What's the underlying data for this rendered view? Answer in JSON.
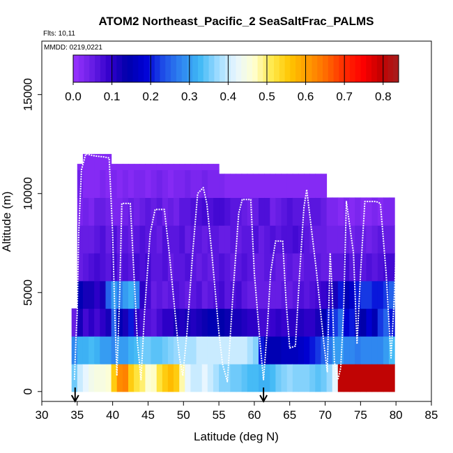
{
  "chart_data": {
    "type": "heatmap",
    "title": "ATOM2 Northeast_Pacific_2 SeaSaltFrac_PALMS",
    "subtitle_flights": "Flts: 10,11",
    "subtitle_dates": "MMDD: 0219,0221",
    "xlabel": "Latitude (deg N)",
    "ylabel": "Altitude (m)",
    "xlim": [
      30,
      85
    ],
    "ylim": [
      0,
      15000
    ],
    "x_ticks": [
      "30",
      "35",
      "40",
      "45",
      "50",
      "55",
      "60",
      "65",
      "70",
      "75",
      "80",
      "85"
    ],
    "y_ticks": [
      "0",
      "5000",
      "10000",
      "15000"
    ],
    "colorbar": {
      "range": [
        0,
        0.84
      ],
      "ticks": [
        "0.0",
        "0.1",
        "0.2",
        "0.3",
        "0.4",
        "0.5",
        "0.6",
        "0.7",
        "0.8"
      ],
      "colors": [
        "#9933ff",
        "#6a1fe6",
        "#3300cc",
        "#0000aa",
        "#0000d6",
        "#1f4fe8",
        "#2f87f0",
        "#3fb8f5",
        "#9fdcff",
        "#e8f6ff",
        "#ffffd0",
        "#ffe94a",
        "#ffc400",
        "#ff9a00",
        "#ff6a00",
        "#ff2a00",
        "#ff0000",
        "#c40000",
        "#a61f1f"
      ]
    },
    "arrows_latitude": [
      34.7,
      61.3
    ],
    "bin_width_deg": 0.8,
    "bin_height_m": 1400,
    "columns": [
      {
        "lat": 34.6,
        "top": 4000,
        "values": [
          0.35,
          0.28,
          0.05,
          0.05
        ]
      },
      {
        "lat": 35.4,
        "top": 11500,
        "values": [
          0.4,
          0.32,
          0.12,
          0.15,
          0.05,
          0.05,
          0.03,
          0.04,
          0.02
        ]
      },
      {
        "lat": 36.2,
        "top": 12000,
        "values": [
          0.42,
          0.32,
          0.08,
          0.12,
          0.06,
          0.05,
          0.04,
          0.02,
          0.02
        ]
      },
      {
        "lat": 37.0,
        "top": 12000,
        "values": [
          0.44,
          0.33,
          0.1,
          0.12,
          0.07,
          0.05,
          0.03,
          0.02,
          0.02
        ]
      },
      {
        "lat": 37.8,
        "top": 12000,
        "values": [
          0.45,
          0.32,
          0.08,
          0.1,
          0.08,
          0.06,
          0.05,
          0.02,
          0.02
        ]
      },
      {
        "lat": 38.6,
        "top": 12000,
        "values": [
          0.45,
          0.3,
          0.1,
          0.12,
          0.07,
          0.07,
          0.05,
          0.03,
          0.02
        ]
      },
      {
        "lat": 39.4,
        "top": 12000,
        "values": [
          0.46,
          0.3,
          0.12,
          0.25,
          0.06,
          0.05,
          0.04,
          0.02,
          0.02
        ]
      },
      {
        "lat": 40.2,
        "top": 11500,
        "values": [
          0.55,
          0.28,
          0.25,
          0.3,
          0.08,
          0.07,
          0.03,
          0.03,
          0.02
        ]
      },
      {
        "lat": 41.0,
        "top": 11500,
        "values": [
          0.62,
          0.3,
          0.15,
          0.27,
          0.06,
          0.05,
          0.03,
          0.02,
          0.02
        ]
      },
      {
        "lat": 41.8,
        "top": 11500,
        "values": [
          0.63,
          0.3,
          0.12,
          0.3,
          0.07,
          0.06,
          0.04,
          0.03,
          0.02
        ]
      },
      {
        "lat": 42.6,
        "top": 11500,
        "values": [
          0.55,
          0.32,
          0.2,
          0.32,
          0.06,
          0.05,
          0.05,
          0.02,
          0.02
        ]
      },
      {
        "lat": 43.4,
        "top": 11500,
        "values": [
          0.52,
          0.33,
          0.1,
          0.28,
          0.08,
          0.06,
          0.04,
          0.03,
          0.02
        ]
      },
      {
        "lat": 44.2,
        "top": 11500,
        "values": [
          0.5,
          0.35,
          0.08,
          0.1,
          0.07,
          0.07,
          0.05,
          0.03,
          0.02
        ]
      },
      {
        "lat": 45.0,
        "top": 11500,
        "values": [
          0.46,
          0.35,
          0.07,
          0.08,
          0.08,
          0.06,
          0.06,
          0.02,
          0.02
        ]
      },
      {
        "lat": 45.8,
        "top": 11500,
        "values": [
          0.47,
          0.34,
          0.06,
          0.05,
          0.06,
          0.06,
          0.05,
          0.03,
          0.02
        ]
      },
      {
        "lat": 46.6,
        "top": 11500,
        "values": [
          0.52,
          0.34,
          0.08,
          0.06,
          0.06,
          0.05,
          0.06,
          0.04,
          0.02
        ]
      },
      {
        "lat": 47.4,
        "top": 11500,
        "values": [
          0.55,
          0.35,
          0.1,
          0.05,
          0.07,
          0.07,
          0.04,
          0.03,
          0.02
        ]
      },
      {
        "lat": 48.2,
        "top": 11500,
        "values": [
          0.57,
          0.36,
          0.1,
          0.06,
          0.05,
          0.06,
          0.05,
          0.02,
          0.02
        ]
      },
      {
        "lat": 49.0,
        "top": 11500,
        "values": [
          0.55,
          0.37,
          0.12,
          0.07,
          0.06,
          0.06,
          0.04,
          0.03,
          0.02
        ]
      },
      {
        "lat": 49.8,
        "top": 11500,
        "values": [
          0.48,
          0.38,
          0.11,
          0.06,
          0.06,
          0.07,
          0.06,
          0.03,
          0.02
        ]
      },
      {
        "lat": 50.6,
        "top": 11500,
        "values": [
          0.42,
          0.38,
          0.12,
          0.05,
          0.07,
          0.05,
          0.06,
          0.04,
          0.02
        ]
      },
      {
        "lat": 51.4,
        "top": 11500,
        "values": [
          0.4,
          0.38,
          0.11,
          0.06,
          0.06,
          0.06,
          0.07,
          0.03,
          0.02
        ]
      },
      {
        "lat": 52.2,
        "top": 11500,
        "values": [
          0.4,
          0.4,
          0.12,
          0.07,
          0.05,
          0.06,
          0.07,
          0.03,
          0.02
        ]
      },
      {
        "lat": 53.0,
        "top": 11500,
        "values": [
          0.42,
          0.4,
          0.13,
          0.05,
          0.06,
          0.05,
          0.08,
          0.04,
          0.02
        ]
      },
      {
        "lat": 53.8,
        "top": 11500,
        "values": [
          0.4,
          0.4,
          0.15,
          0.06,
          0.05,
          0.06,
          0.07,
          0.03,
          0.02
        ]
      },
      {
        "lat": 54.6,
        "top": 11500,
        "values": [
          0.38,
          0.4,
          0.15,
          0.07,
          0.06,
          0.06,
          0.08,
          0.03,
          0.02
        ]
      },
      {
        "lat": 55.4,
        "top": 11000,
        "values": [
          0.36,
          0.4,
          0.14,
          0.08,
          0.07,
          0.05,
          0.08,
          0.03
        ]
      },
      {
        "lat": 56.2,
        "top": 11000,
        "values": [
          0.36,
          0.4,
          0.13,
          0.06,
          0.06,
          0.05,
          0.07,
          0.02
        ]
      },
      {
        "lat": 57.0,
        "top": 11000,
        "values": [
          0.35,
          0.4,
          0.12,
          0.07,
          0.05,
          0.06,
          0.06,
          0.02
        ]
      },
      {
        "lat": 57.8,
        "top": 11000,
        "values": [
          0.35,
          0.4,
          0.12,
          0.08,
          0.06,
          0.05,
          0.06,
          0.02
        ]
      },
      {
        "lat": 58.6,
        "top": 11000,
        "values": [
          0.34,
          0.4,
          0.11,
          0.06,
          0.07,
          0.06,
          0.05,
          0.02
        ]
      },
      {
        "lat": 59.4,
        "top": 11000,
        "values": [
          0.33,
          0.38,
          0.1,
          0.05,
          0.06,
          0.06,
          0.04,
          0.02
        ]
      },
      {
        "lat": 60.2,
        "top": 11000,
        "values": [
          0.33,
          0.36,
          0.1,
          0.05,
          0.05,
          0.07,
          0.05,
          0.02
        ]
      },
      {
        "lat": 61.0,
        "top": 11000,
        "values": [
          0.32,
          0.2,
          0.08,
          0.05,
          0.05,
          0.05,
          0.07,
          0.02
        ]
      },
      {
        "lat": 61.8,
        "top": 11000,
        "values": [
          0.32,
          0.15,
          0.08,
          0.05,
          0.06,
          0.06,
          0.07,
          0.02
        ]
      },
      {
        "lat": 62.6,
        "top": 11000,
        "values": [
          0.33,
          0.15,
          0.09,
          0.05,
          0.06,
          0.07,
          0.04,
          0.02
        ]
      },
      {
        "lat": 63.4,
        "top": 11000,
        "values": [
          0.35,
          0.15,
          0.1,
          0.05,
          0.05,
          0.06,
          0.05,
          0.02
        ]
      },
      {
        "lat": 64.2,
        "top": 11000,
        "values": [
          0.36,
          0.16,
          0.09,
          0.06,
          0.05,
          0.07,
          0.06,
          0.02
        ]
      },
      {
        "lat": 65.0,
        "top": 11000,
        "values": [
          0.37,
          0.16,
          0.1,
          0.05,
          0.06,
          0.07,
          0.07,
          0.02
        ]
      },
      {
        "lat": 65.8,
        "top": 11000,
        "values": [
          0.36,
          0.16,
          0.1,
          0.06,
          0.05,
          0.08,
          0.06,
          0.02
        ]
      },
      {
        "lat": 66.6,
        "top": 11000,
        "values": [
          0.36,
          0.17,
          0.11,
          0.07,
          0.05,
          0.07,
          0.06,
          0.02
        ]
      },
      {
        "lat": 67.4,
        "top": 11000,
        "values": [
          0.36,
          0.18,
          0.1,
          0.06,
          0.06,
          0.06,
          0.05,
          0.02
        ]
      },
      {
        "lat": 68.2,
        "top": 11000,
        "values": [
          0.35,
          0.2,
          0.1,
          0.07,
          0.06,
          0.05,
          0.06,
          0.02
        ]
      },
      {
        "lat": 69.0,
        "top": 11000,
        "values": [
          0.34,
          0.22,
          0.12,
          0.08,
          0.06,
          0.05,
          0.06,
          0.02
        ]
      },
      {
        "lat": 69.8,
        "top": 11000,
        "values": [
          0.35,
          0.25,
          0.15,
          0.09,
          0.05,
          0.05,
          0.05,
          0.02
        ]
      },
      {
        "lat": 70.6,
        "top": 9800,
        "values": [
          0.37,
          0.27,
          0.2,
          0.1,
          0.05,
          0.04,
          0.03
        ]
      },
      {
        "lat": 71.4,
        "top": 9800,
        "values": [
          0.42,
          0.3,
          0.22,
          0.12,
          0.06,
          0.04,
          0.03
        ]
      },
      {
        "lat": 72.2,
        "top": 9800,
        "values": [
          0.8,
          0.3,
          0.26,
          0.2,
          0.06,
          0.04,
          0.02
        ]
      },
      {
        "lat": 73.0,
        "top": 9800,
        "values": [
          0.8,
          0.28,
          0.18,
          0.15,
          0.08,
          0.05,
          0.03
        ]
      },
      {
        "lat": 73.8,
        "top": 9800,
        "values": [
          0.8,
          0.28,
          0.2,
          0.17,
          0.06,
          0.04,
          0.02
        ]
      },
      {
        "lat": 74.6,
        "top": 9800,
        "values": [
          0.8,
          0.27,
          0.15,
          0.2,
          0.07,
          0.05,
          0.03
        ]
      },
      {
        "lat": 75.4,
        "top": 9800,
        "values": [
          0.8,
          0.28,
          0.14,
          0.22,
          0.06,
          0.05,
          0.02
        ]
      },
      {
        "lat": 76.2,
        "top": 9800,
        "values": [
          0.8,
          0.28,
          0.18,
          0.22,
          0.07,
          0.04,
          0.02
        ]
      },
      {
        "lat": 77.0,
        "top": 9800,
        "values": [
          0.8,
          0.28,
          0.15,
          0.2,
          0.06,
          0.05,
          0.03
        ]
      },
      {
        "lat": 77.8,
        "top": 9800,
        "values": [
          0.8,
          0.28,
          0.22,
          0.2,
          0.07,
          0.06,
          0.02
        ]
      },
      {
        "lat": 78.6,
        "top": 9800,
        "values": [
          0.8,
          0.3,
          0.25,
          0.22,
          0.08,
          0.05,
          0.03
        ]
      },
      {
        "lat": 79.4,
        "top": 9800,
        "values": [
          0.8,
          0.33,
          0.2,
          0.25,
          0.08,
          0.05,
          0.03
        ]
      }
    ],
    "flight_track": [
      [
        34.6,
        600
      ],
      [
        34.8,
        2500
      ],
      [
        35.0,
        4000
      ],
      [
        35.2,
        8000
      ],
      [
        35.6,
        11200
      ],
      [
        36.2,
        12000
      ],
      [
        37.5,
        11900
      ],
      [
        38.8,
        11850
      ],
      [
        39.5,
        11800
      ],
      [
        40.0,
        8000
      ],
      [
        40.3,
        4000
      ],
      [
        40.6,
        800
      ],
      [
        41.0,
        5000
      ],
      [
        41.3,
        9500
      ],
      [
        42.5,
        9500
      ],
      [
        43.0,
        6000
      ],
      [
        43.5,
        2500
      ],
      [
        44.0,
        600
      ],
      [
        44.5,
        4000
      ],
      [
        45.3,
        8000
      ],
      [
        46.0,
        9200
      ],
      [
        47.3,
        9200
      ],
      [
        48.0,
        7000
      ],
      [
        48.8,
        4000
      ],
      [
        49.4,
        1800
      ],
      [
        49.9,
        800
      ],
      [
        50.5,
        3000
      ],
      [
        51.3,
        7000
      ],
      [
        52.0,
        10000
      ],
      [
        52.8,
        10300
      ],
      [
        53.3,
        9500
      ],
      [
        54.0,
        7000
      ],
      [
        55.0,
        3000
      ],
      [
        55.5,
        1400
      ],
      [
        56.2,
        500
      ],
      [
        57.0,
        5000
      ],
      [
        57.8,
        9000
      ],
      [
        58.3,
        9700
      ],
      [
        59.5,
        9700
      ],
      [
        60.0,
        6000
      ],
      [
        60.8,
        2500
      ],
      [
        61.3,
        600
      ],
      [
        61.8,
        3000
      ],
      [
        62.3,
        6000
      ],
      [
        63.0,
        7600
      ],
      [
        64.0,
        7600
      ],
      [
        64.5,
        4500
      ],
      [
        65.0,
        2200
      ],
      [
        65.8,
        2300
      ],
      [
        66.4,
        6000
      ],
      [
        67.0,
        9300
      ],
      [
        67.4,
        10200
      ],
      [
        67.8,
        9000
      ],
      [
        68.8,
        6000
      ],
      [
        69.8,
        2500
      ],
      [
        70.3,
        1000
      ],
      [
        70.7,
        7000
      ],
      [
        71.0,
        5000
      ],
      [
        71.3,
        1500
      ],
      [
        71.8,
        600
      ],
      [
        72.2,
        1200
      ],
      [
        72.6,
        4000
      ],
      [
        73.0,
        9600
      ],
      [
        74.0,
        7000
      ],
      [
        74.5,
        2400
      ],
      [
        75.0,
        6000
      ],
      [
        75.6,
        9600
      ],
      [
        77.2,
        9600
      ],
      [
        77.8,
        9500
      ],
      [
        78.6,
        6000
      ],
      [
        79.3,
        1700
      ],
      [
        79.8,
        5000
      ],
      [
        80.2,
        9000
      ]
    ]
  }
}
